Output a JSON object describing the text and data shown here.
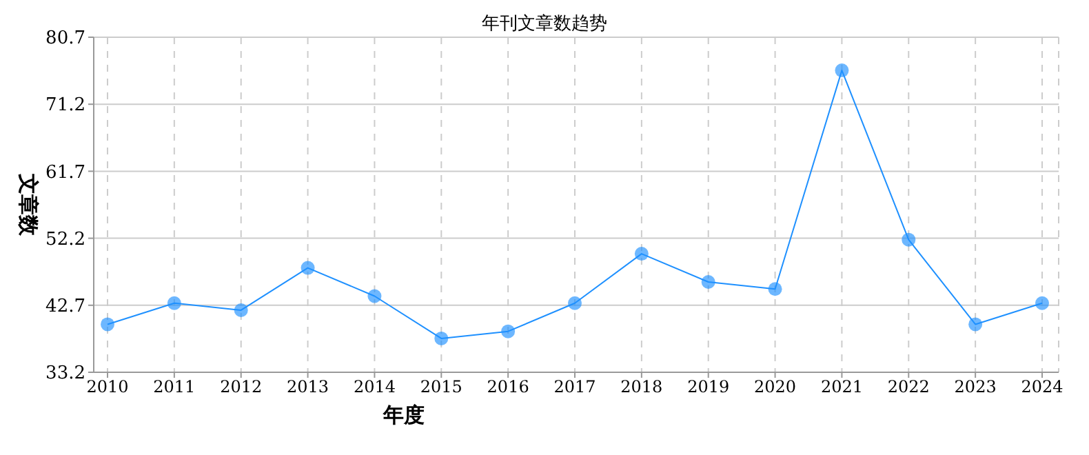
{
  "chart_data": {
    "type": "line",
    "title": "年刊文章数趋势",
    "xlabel": "年度",
    "ylabel": "文章数",
    "categories": [
      "2010",
      "2011",
      "2012",
      "2013",
      "2014",
      "2015",
      "2016",
      "2017",
      "2018",
      "2019",
      "2020",
      "2021",
      "2022",
      "2023",
      "2024"
    ],
    "series": [
      {
        "color": "#1e90ff",
        "values": [
          40,
          43,
          42,
          48,
          44,
          38,
          39,
          43,
          50,
          46,
          45,
          76,
          52,
          40,
          43
        ]
      }
    ],
    "ylim": [
      33.2,
      80.7
    ],
    "yticks": [
      33.2,
      42.7,
      52.2,
      61.7,
      71.2,
      80.7
    ],
    "grid": true,
    "marker": "circle",
    "line_style": "solid",
    "legend": false
  }
}
